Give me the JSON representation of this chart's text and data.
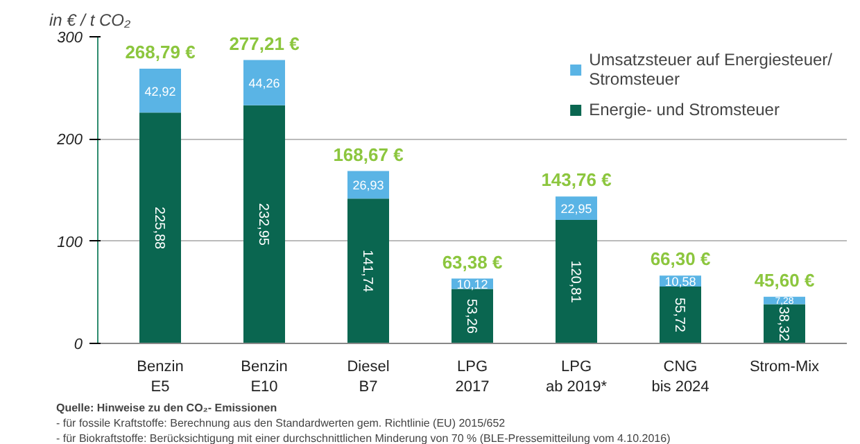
{
  "chart_data": {
    "type": "bar",
    "stacked": true,
    "ylabel": "in € / t CO₂",
    "categories": [
      "Benzin\nE5",
      "Benzin\nE10",
      "Diesel\nB7",
      "LPG\n2017",
      "LPG\nab 2019*",
      "CNG\nbis 2024",
      "Strom-Mix"
    ],
    "series": [
      {
        "name": "Energie- und Stromsteuer",
        "color": "#0a6650",
        "values": [
          225.88,
          232.95,
          141.74,
          53.26,
          120.81,
          55.72,
          38.32
        ],
        "value_labels": [
          "225,88",
          "232,95",
          "141,74",
          "53,26",
          "120,81",
          "55,72",
          "38,32"
        ]
      },
      {
        "name": "Umsatzsteuer auf Energiesteuer/Stromsteuer",
        "color": "#5ab4e5",
        "values": [
          42.92,
          44.26,
          26.93,
          10.12,
          22.95,
          10.58,
          7.28
        ],
        "value_labels": [
          "42,92",
          "44,26",
          "26,93",
          "10,12",
          "22,95",
          "10,58",
          "7,28"
        ]
      }
    ],
    "totals": [
      "268,79 €",
      "277,21 €",
      "168,67 €",
      "63,38 €",
      "143,76 €",
      "66,30 €",
      "45,60 €"
    ],
    "ylim": [
      0,
      300
    ],
    "yticks": [
      0,
      100,
      200,
      300
    ],
    "grid": "y",
    "legend": "top right",
    "annotations": [
      "Quelle: Hinweise zu den CO₂- Emissionen",
      "-  für fossile Kraftstoffe: Berechnung aus den Standardwerten gem. Richtlinie (EU) 2015/652",
      "-  für Biokraftstoffe: Berücksichtigung mit einer durchschnittlichen Minderung von 70 % (BLE-Pressemitteilung vom 4.10.2016)"
    ]
  }
}
